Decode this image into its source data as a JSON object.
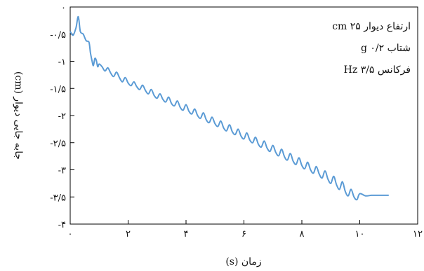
{
  "chart_data": {
    "type": "line",
    "xlabel": "زمان (s)",
    "ylabel": "جابه جایی دیوار (cm)",
    "xlim": [
      0,
      12
    ],
    "ylim": [
      -4,
      0
    ],
    "grid": false,
    "x_ticks": [
      {
        "value": 0,
        "label": "۰"
      },
      {
        "value": 2,
        "label": "۲"
      },
      {
        "value": 4,
        "label": "۴"
      },
      {
        "value": 6,
        "label": "۶"
      },
      {
        "value": 8,
        "label": "۸"
      },
      {
        "value": 10,
        "label": "۱۰"
      },
      {
        "value": 12,
        "label": "۱۲"
      }
    ],
    "y_ticks": [
      {
        "value": 0,
        "label": "۰"
      },
      {
        "value": -0.5,
        "label": "-۰/۵"
      },
      {
        "value": -1,
        "label": "-۱"
      },
      {
        "value": -1.5,
        "label": "-۱/۵"
      },
      {
        "value": -2,
        "label": "-۲"
      },
      {
        "value": -2.5,
        "label": "-۲/۵"
      },
      {
        "value": -3,
        "label": "-۳"
      },
      {
        "value": -3.5,
        "label": "-۳/۵"
      },
      {
        "value": -4,
        "label": "-۴"
      }
    ],
    "annotations": [
      "ارتفاع دیوار ۲۵ cm",
      "شتاب ۰/۲ g",
      "فرکانس ۳/۵ Hz"
    ],
    "annotation_position": "top-right",
    "series": [
      {
        "color": "#5b9bd5",
        "frequency_hz": 3.5,
        "x": [
          0.0,
          0.1,
          0.2,
          0.28,
          0.35,
          0.45,
          0.55,
          0.65,
          0.7,
          0.75,
          0.8,
          0.85,
          0.9,
          0.95,
          1.0,
          1.1,
          1.2,
          1.3,
          1.4,
          1.5,
          1.6,
          1.7,
          1.8,
          1.9,
          2.0,
          2.1,
          2.2,
          2.3,
          2.4,
          2.5,
          2.6,
          2.7,
          2.8,
          2.9,
          3.0,
          3.1,
          3.2,
          3.3,
          3.4,
          3.5,
          3.6,
          3.7,
          3.8,
          3.9,
          4.0,
          4.1,
          4.2,
          4.3,
          4.4,
          4.5,
          4.6,
          4.7,
          4.8,
          4.9,
          5.0,
          5.1,
          5.2,
          5.3,
          5.4,
          5.5,
          5.6,
          5.7,
          5.8,
          5.9,
          6.0,
          6.1,
          6.2,
          6.3,
          6.4,
          6.5,
          6.6,
          6.7,
          6.8,
          6.9,
          7.0,
          7.1,
          7.2,
          7.3,
          7.4,
          7.5,
          7.6,
          7.7,
          7.8,
          7.9,
          8.0,
          8.1,
          8.2,
          8.3,
          8.4,
          8.5,
          8.6,
          8.7,
          8.8,
          8.9,
          9.0,
          9.1,
          9.2,
          9.3,
          9.4,
          9.5,
          9.6,
          9.7,
          9.8,
          9.9,
          10.0,
          10.2,
          10.4,
          10.6,
          10.8,
          11.0
        ],
        "y": [
          -0.45,
          -0.52,
          -0.38,
          -0.18,
          -0.45,
          -0.5,
          -0.62,
          -0.65,
          -0.85,
          -0.98,
          -1.08,
          -0.95,
          -0.98,
          -1.1,
          -1.05,
          -1.1,
          -1.18,
          -1.12,
          -1.22,
          -1.28,
          -1.2,
          -1.3,
          -1.38,
          -1.3,
          -1.4,
          -1.45,
          -1.38,
          -1.47,
          -1.52,
          -1.44,
          -1.54,
          -1.6,
          -1.52,
          -1.63,
          -1.68,
          -1.6,
          -1.7,
          -1.75,
          -1.66,
          -1.78,
          -1.82,
          -1.73,
          -1.85,
          -1.9,
          -1.8,
          -1.92,
          -1.97,
          -1.88,
          -2.0,
          -2.05,
          -1.95,
          -2.08,
          -2.13,
          -2.03,
          -2.15,
          -2.2,
          -2.1,
          -2.23,
          -2.28,
          -2.17,
          -2.3,
          -2.35,
          -2.25,
          -2.38,
          -2.43,
          -2.32,
          -2.45,
          -2.5,
          -2.4,
          -2.53,
          -2.58,
          -2.47,
          -2.6,
          -2.66,
          -2.55,
          -2.68,
          -2.74,
          -2.62,
          -2.76,
          -2.82,
          -2.7,
          -2.84,
          -2.9,
          -2.78,
          -2.92,
          -2.98,
          -2.86,
          -3.0,
          -3.06,
          -2.94,
          -3.08,
          -3.15,
          -3.02,
          -3.17,
          -3.25,
          -3.12,
          -3.28,
          -3.36,
          -3.22,
          -3.4,
          -3.48,
          -3.36,
          -3.5,
          -3.55,
          -3.44,
          -3.48,
          -3.47,
          -3.47,
          -3.47,
          -3.47
        ]
      }
    ]
  }
}
